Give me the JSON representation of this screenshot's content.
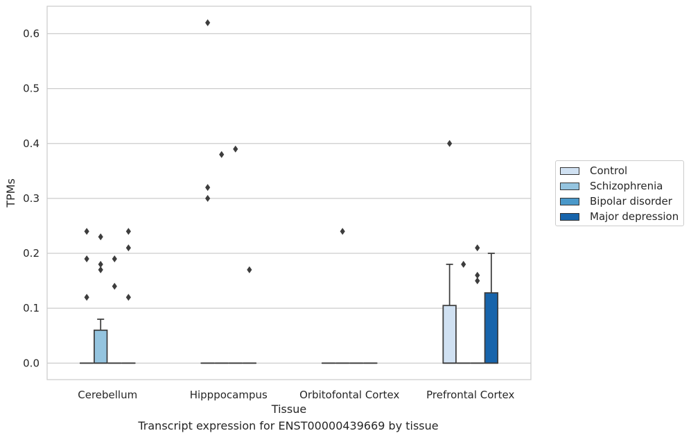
{
  "chart_data": {
    "type": "boxplot",
    "title": "",
    "caption": "Transcript expression for ENST00000439669 by tissue",
    "xlabel": "Tissue",
    "ylabel": "TPMs",
    "ylim": [
      -0.03,
      0.65
    ],
    "yticks": [
      "0.0",
      "0.1",
      "0.2",
      "0.3",
      "0.4",
      "0.5",
      "0.6"
    ],
    "categories": [
      "Cerebellum",
      "Hipppocampus",
      "Orbitofontal Cortex",
      "Prefrontal Cortex"
    ],
    "grid": "horizontal",
    "legend_position": "right",
    "series": [
      {
        "name": "Control",
        "color": "#d0e1f2",
        "boxes": [
          {
            "q1": 0,
            "median": 0,
            "q3": 0,
            "whisker_low": 0,
            "whisker_high": 0,
            "outliers": [
              0.12,
              0.19,
              0.24
            ]
          },
          {
            "q1": 0,
            "median": 0,
            "q3": 0,
            "whisker_low": 0,
            "whisker_high": 0,
            "outliers": [
              0.3,
              0.32,
              0.62
            ]
          },
          {
            "q1": 0,
            "median": 0,
            "q3": 0,
            "whisker_low": 0,
            "whisker_high": 0,
            "outliers": []
          },
          {
            "q1": 0,
            "median": 0,
            "q3": 0.105,
            "whisker_low": 0,
            "whisker_high": 0.18,
            "outliers": [
              0.4
            ]
          }
        ]
      },
      {
        "name": "Schizophrenia",
        "color": "#94c4df",
        "boxes": [
          {
            "q1": 0,
            "median": 0,
            "q3": 0.06,
            "whisker_low": 0,
            "whisker_high": 0.08,
            "outliers": [
              0.17,
              0.18,
              0.23
            ]
          },
          {
            "q1": 0,
            "median": 0,
            "q3": 0,
            "whisker_low": 0,
            "whisker_high": 0,
            "outliers": [
              0.38
            ]
          },
          {
            "q1": 0,
            "median": 0,
            "q3": 0,
            "whisker_low": 0,
            "whisker_high": 0,
            "outliers": [
              0.24
            ]
          },
          {
            "q1": 0,
            "median": 0,
            "q3": 0,
            "whisker_low": 0,
            "whisker_high": 0,
            "outliers": [
              0.18
            ]
          }
        ]
      },
      {
        "name": "Bipolar disorder",
        "color": "#4a98c9",
        "boxes": [
          {
            "q1": 0,
            "median": 0,
            "q3": 0,
            "whisker_low": 0,
            "whisker_high": 0,
            "outliers": [
              0.14,
              0.19
            ]
          },
          {
            "q1": 0,
            "median": 0,
            "q3": 0,
            "whisker_low": 0,
            "whisker_high": 0,
            "outliers": [
              0.39
            ]
          },
          {
            "q1": 0,
            "median": 0,
            "q3": 0,
            "whisker_low": 0,
            "whisker_high": 0,
            "outliers": []
          },
          {
            "q1": 0,
            "median": 0,
            "q3": 0,
            "whisker_low": 0,
            "whisker_high": 0,
            "outliers": [
              0.15,
              0.16,
              0.21
            ]
          }
        ]
      },
      {
        "name": "Major depression",
        "color": "#1764ab",
        "boxes": [
          {
            "q1": 0,
            "median": 0,
            "q3": 0,
            "whisker_low": 0,
            "whisker_high": 0,
            "outliers": [
              0.12,
              0.21,
              0.24
            ]
          },
          {
            "q1": 0,
            "median": 0,
            "q3": 0,
            "whisker_low": 0,
            "whisker_high": 0,
            "outliers": [
              0.17
            ]
          },
          {
            "q1": 0,
            "median": 0,
            "q3": 0,
            "whisker_low": 0,
            "whisker_high": 0,
            "outliers": []
          },
          {
            "q1": 0,
            "median": 0,
            "q3": 0.128,
            "whisker_low": 0,
            "whisker_high": 0.2,
            "outliers": []
          }
        ]
      }
    ]
  }
}
